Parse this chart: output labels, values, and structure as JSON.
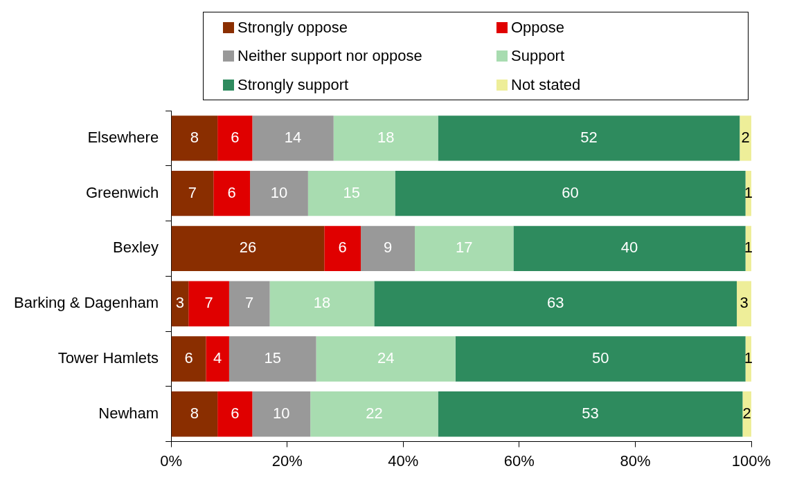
{
  "chart_data": {
    "type": "bar",
    "orientation": "horizontal",
    "stacked": true,
    "legend": "top",
    "grid": false,
    "categories": [
      "Elsewhere",
      "Greenwich",
      "Bexley",
      "Barking & Dagenham",
      "Tower Hamlets",
      "Newham"
    ],
    "series": [
      {
        "name": "Strongly oppose",
        "color": "#8a2e00",
        "values": [
          8,
          7.3,
          26.4,
          3,
          6,
          8
        ],
        "value_labels": [
          "8",
          "7",
          "26",
          "3",
          "6",
          "8"
        ]
      },
      {
        "name": "Oppose",
        "color": "#e00000",
        "values": [
          6,
          6.3,
          6.3,
          7,
          4,
          6
        ],
        "value_labels": [
          "6",
          "6",
          "6",
          "7",
          "4",
          "6"
        ]
      },
      {
        "name": "Neither support nor oppose",
        "color": "#999999",
        "values": [
          14,
          10,
          9.3,
          7,
          15,
          10
        ],
        "value_labels": [
          "14",
          "10",
          "9",
          "7",
          "15",
          "10"
        ]
      },
      {
        "name": "Support",
        "color": "#a8dcb0",
        "values": [
          18,
          15,
          17,
          18,
          24,
          22
        ],
        "value_labels": [
          "18",
          "15",
          "17",
          "18",
          "24",
          "22"
        ]
      },
      {
        "name": "Strongly support",
        "color": "#2e8b5e",
        "values": [
          52,
          60.4,
          40,
          62.5,
          50,
          52.5
        ],
        "value_labels": [
          "52",
          "60",
          "40",
          "63",
          "50",
          "53"
        ]
      },
      {
        "name": "Not stated",
        "color": "#eeee99",
        "values": [
          2,
          1,
          1,
          2.5,
          1,
          1.5
        ],
        "value_labels": [
          "2",
          "1",
          "1",
          "3",
          "1",
          "2"
        ]
      }
    ],
    "xlim": [
      0,
      100
    ],
    "xticks": [
      {
        "value": 0,
        "label": "0%"
      },
      {
        "value": 20,
        "label": "20%"
      },
      {
        "value": 40,
        "label": "40%"
      },
      {
        "value": 60,
        "label": "60%"
      },
      {
        "value": 80,
        "label": "80%"
      },
      {
        "value": 100,
        "label": "100%"
      }
    ]
  }
}
